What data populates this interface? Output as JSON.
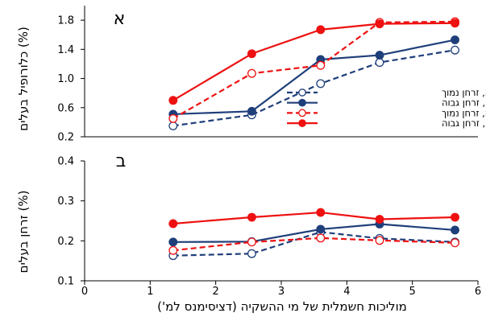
{
  "chart_data": [
    {
      "panel_label": "א",
      "type": "line",
      "ylabel": "כלורופיל בעלים (%)",
      "xlabel": "",
      "ylim": [
        0.2,
        2.0
      ],
      "yticks": [
        0.2,
        0.6,
        1.0,
        1.4,
        1.8
      ],
      "ytick_labels": [
        "0.2",
        "0.6",
        "1.0",
        "1.4",
        "1.8"
      ],
      "grid": false,
      "legend_position": "center-right",
      "series": [
        {
          "name": "ללא מיקוריזה, זרחן נמוך",
          "color": "#1f3f7a",
          "dashed": true,
          "filled": false,
          "x": [
            1.35,
            2.55,
            3.6,
            4.5,
            5.65
          ],
          "y": [
            0.35,
            0.5,
            0.93,
            1.22,
            1.39
          ]
        },
        {
          "name": "ללא מיקוריזה, זרחן גבוה",
          "color": "#1f3f7a",
          "dashed": false,
          "filled": true,
          "x": [
            1.35,
            2.55,
            3.6,
            4.5,
            5.65
          ],
          "y": [
            0.51,
            0.55,
            1.26,
            1.32,
            1.53
          ]
        },
        {
          "name": "עם מיקוריזה, זרחן נמוך",
          "color": "#ee1111",
          "dashed": true,
          "filled": false,
          "x": [
            1.35,
            2.55,
            3.6,
            4.5,
            5.65
          ],
          "y": [
            0.45,
            1.07,
            1.18,
            1.77,
            1.78
          ]
        },
        {
          "name": "עם מיקוריזה, זרחן גבוה",
          "color": "#ee1111",
          "dashed": false,
          "filled": true,
          "x": [
            1.35,
            2.55,
            3.6,
            4.5,
            5.65
          ],
          "y": [
            0.7,
            1.34,
            1.67,
            1.75,
            1.76
          ]
        }
      ]
    },
    {
      "panel_label": "ב",
      "type": "line",
      "ylabel": "זרחן בעלים (%)",
      "xlabel": "מוליכות חשמלית של מי ההשקיה (דציסימנס למ')",
      "xlim": [
        0,
        6
      ],
      "xticks": [
        0,
        1,
        2,
        3,
        4,
        5,
        6
      ],
      "xtick_labels": [
        "0",
        "1",
        "2",
        "3",
        "4",
        "5",
        "6"
      ],
      "ylim": [
        0.1,
        0.4
      ],
      "yticks": [
        0.1,
        0.2,
        0.3,
        0.4
      ],
      "ytick_labels": [
        "0.1",
        "0.2",
        "0.3",
        "0.4"
      ],
      "grid": false,
      "series": [
        {
          "color": "#1f3f7a",
          "dashed": true,
          "filled": false,
          "x": [
            1.35,
            2.55,
            3.6,
            4.5,
            5.65
          ],
          "y": [
            0.163,
            0.168,
            0.222,
            0.206,
            0.197
          ]
        },
        {
          "color": "#1f3f7a",
          "dashed": false,
          "filled": true,
          "x": [
            1.35,
            2.55,
            3.6,
            4.5,
            5.65
          ],
          "y": [
            0.197,
            0.198,
            0.229,
            0.242,
            0.227
          ]
        },
        {
          "color": "#ee1111",
          "dashed": true,
          "filled": false,
          "x": [
            1.35,
            2.55,
            3.6,
            4.5,
            5.65
          ],
          "y": [
            0.176,
            0.197,
            0.207,
            0.201,
            0.195
          ]
        },
        {
          "color": "#ee1111",
          "dashed": false,
          "filled": true,
          "x": [
            1.35,
            2.55,
            3.6,
            4.5,
            5.65
          ],
          "y": [
            0.243,
            0.259,
            0.271,
            0.254,
            0.259
          ]
        }
      ]
    }
  ]
}
